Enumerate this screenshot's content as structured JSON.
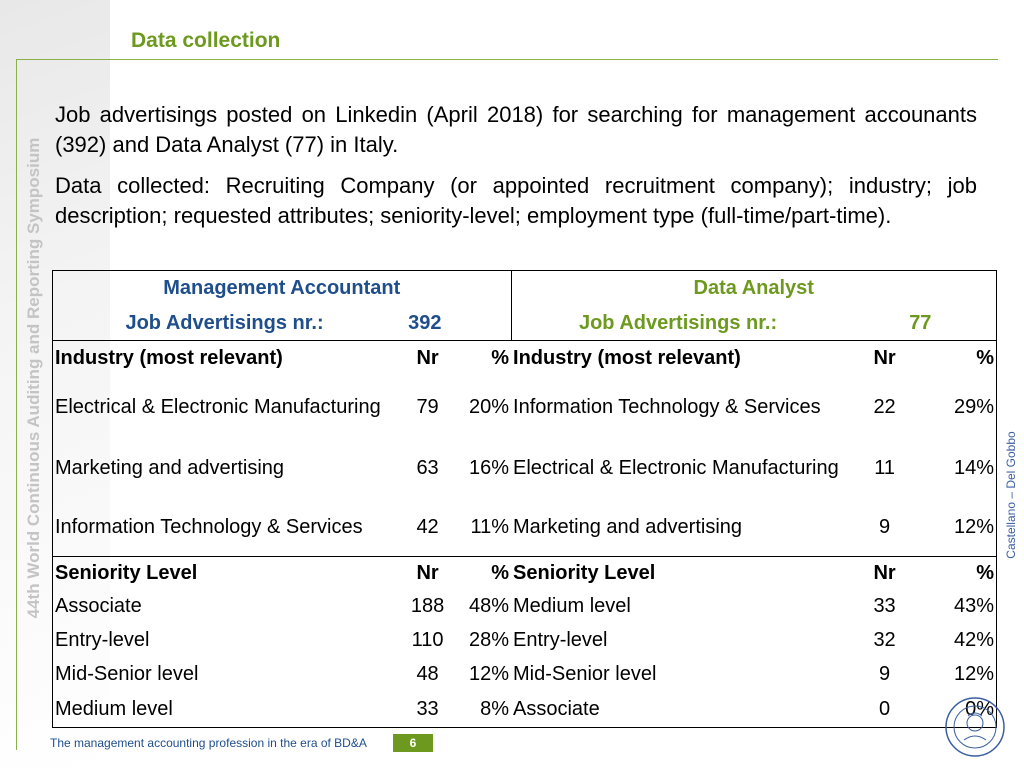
{
  "sidebar_text": "44th World Continuous Auditing and Reporting Symposium",
  "right_text": "Castellano – Del Gobbo",
  "title": "Data collection",
  "paragraphs": [
    "Job advertisings posted on Linkedin (April 2018) for searching for management accounants (392) and Data Analyst (77) in Italy.",
    "Data collected: Recruiting Company (or appointed recruitment company); industry; job description; requested attributes; seniority-level; employment type (full-time/part-time)."
  ],
  "table": {
    "left": {
      "header": "Management Accountant",
      "job_label": "Job Advertisings nr.:",
      "job_count": "392",
      "industry_header": "Industry (most relevant)",
      "nr_label": "Nr",
      "pct_label": "%",
      "industry_rows": [
        {
          "name": "Electrical & Electronic Manufacturing",
          "nr": "79",
          "pct": "20%"
        },
        {
          "name": "Marketing and advertising",
          "nr": "63",
          "pct": "16%"
        },
        {
          "name": "Information Technology & Services",
          "nr": "42",
          "pct": "11%"
        }
      ],
      "seniority_header": "Seniority Level",
      "seniority_rows": [
        {
          "name": "Associate",
          "nr": "188",
          "pct": "48%"
        },
        {
          "name": "Entry-level",
          "nr": "110",
          "pct": "28%"
        },
        {
          "name": "Mid-Senior level",
          "nr": "48",
          "pct": "12%"
        },
        {
          "name": "Medium level",
          "nr": "33",
          "pct": "8%"
        }
      ]
    },
    "right": {
      "header": "Data Analyst",
      "job_label": "Job Advertisings nr.:",
      "job_count": "77",
      "industry_header": "Industry (most relevant)",
      "nr_label": "Nr",
      "pct_label": "%",
      "industry_rows": [
        {
          "name": "Information Technology & Services",
          "nr": "22",
          "pct": "29%"
        },
        {
          "name": "Electrical & Electronic Manufacturing",
          "nr": "11",
          "pct": "14%"
        },
        {
          "name": "Marketing and advertising",
          "nr": "9",
          "pct": "12%"
        }
      ],
      "seniority_header": "Seniority Level",
      "seniority_rows": [
        {
          "name": "Medium level",
          "nr": "33",
          "pct": "43%"
        },
        {
          "name": "Entry-level",
          "nr": "32",
          "pct": "42%"
        },
        {
          "name": "Mid-Senior level",
          "nr": "9",
          "pct": "12%"
        },
        {
          "name": "Associate",
          "nr": "0",
          "pct": "0%"
        }
      ]
    }
  },
  "footer": {
    "text": "The management accounting profession in the era of BD&A",
    "page": "6"
  },
  "colors": {
    "green": "#6d9a1e",
    "blue": "#1f4e8c"
  },
  "seal_icon": "university-seal-icon"
}
